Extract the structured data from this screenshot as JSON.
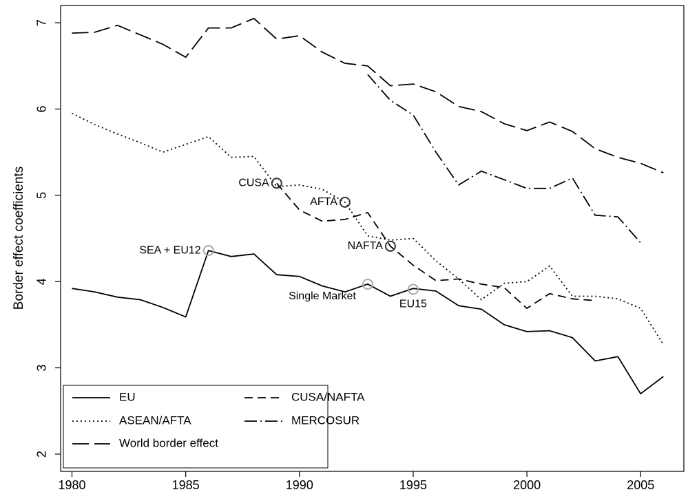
{
  "chart_data": {
    "type": "line",
    "y_label": "Border effect coefficients",
    "x": [
      1980,
      1981,
      1982,
      1983,
      1984,
      1985,
      1986,
      1987,
      1988,
      1989,
      1990,
      1991,
      1992,
      1993,
      1994,
      1995,
      1996,
      1997,
      1998,
      1999,
      2000,
      2001,
      2002,
      2003,
      2004,
      2005,
      2006
    ],
    "xlim": [
      1979.5,
      2006.9
    ],
    "xticks": [
      1980,
      1985,
      1990,
      1995,
      2000,
      2005
    ],
    "ylim": [
      1.8,
      7.2
    ],
    "yticks": [
      2,
      3,
      4,
      5,
      6,
      7
    ],
    "series": [
      {
        "name": "EU",
        "color": "#000000",
        "values": [
          3.92,
          3.88,
          3.82,
          3.79,
          3.7,
          3.59,
          4.36,
          4.29,
          4.32,
          4.08,
          4.06,
          3.95,
          3.88,
          3.97,
          3.83,
          3.92,
          3.89,
          3.72,
          3.68,
          3.5,
          3.42,
          3.43,
          3.35,
          3.08,
          3.13,
          2.7,
          2.9
        ]
      },
      {
        "name": "CUSA/NAFTA",
        "color": "#000000",
        "values": [
          null,
          null,
          null,
          null,
          null,
          null,
          null,
          null,
          null,
          5.14,
          4.83,
          4.7,
          4.72,
          4.8,
          4.41,
          4.19,
          4.01,
          4.03,
          3.97,
          3.93,
          3.69,
          3.86,
          3.8,
          3.78,
          null,
          null,
          null
        ]
      },
      {
        "name": "ASEAN/AFTA",
        "color": "#000000",
        "values": [
          5.95,
          5.82,
          5.71,
          5.61,
          5.5,
          5.59,
          5.68,
          5.44,
          5.45,
          5.1,
          5.12,
          5.07,
          4.92,
          4.53,
          4.48,
          4.5,
          4.24,
          4.03,
          3.79,
          3.98,
          4.0,
          4.18,
          3.83,
          3.83,
          3.8,
          3.69,
          3.27
        ]
      },
      {
        "name": "MERCOSUR",
        "color": "#000000",
        "values": [
          null,
          null,
          null,
          null,
          null,
          null,
          null,
          null,
          null,
          null,
          null,
          null,
          null,
          6.4,
          6.1,
          5.93,
          5.5,
          5.12,
          5.28,
          5.18,
          5.08,
          5.08,
          5.2,
          4.77,
          4.75,
          4.45,
          null
        ]
      },
      {
        "name": "World border effect",
        "color": "#000000",
        "values": [
          6.88,
          6.89,
          6.97,
          6.86,
          6.75,
          6.6,
          6.94,
          6.94,
          7.05,
          6.81,
          6.85,
          6.66,
          6.53,
          6.5,
          6.27,
          6.29,
          6.2,
          6.03,
          5.97,
          5.83,
          5.75,
          5.85,
          5.74,
          5.54,
          5.44,
          5.37,
          5.26
        ]
      }
    ],
    "annotations": [
      {
        "text": "CUSA",
        "x": 1989,
        "y": 5.14,
        "color": "#333333"
      },
      {
        "text": "AFTA",
        "x": 1992,
        "y": 4.92,
        "color": "#333333"
      },
      {
        "text": "NAFTA",
        "x": 1994,
        "y": 4.41,
        "color": "#333333"
      },
      {
        "text": "SEA + EU12",
        "x": 1986,
        "y": 4.36,
        "color": "#aaaaaa"
      },
      {
        "text": "Single Market",
        "x": 1993,
        "y": 3.97,
        "color": "#aaaaaa"
      },
      {
        "text": "EU15",
        "x": 1995,
        "y": 3.91,
        "color": "#aaaaaa"
      }
    ]
  }
}
